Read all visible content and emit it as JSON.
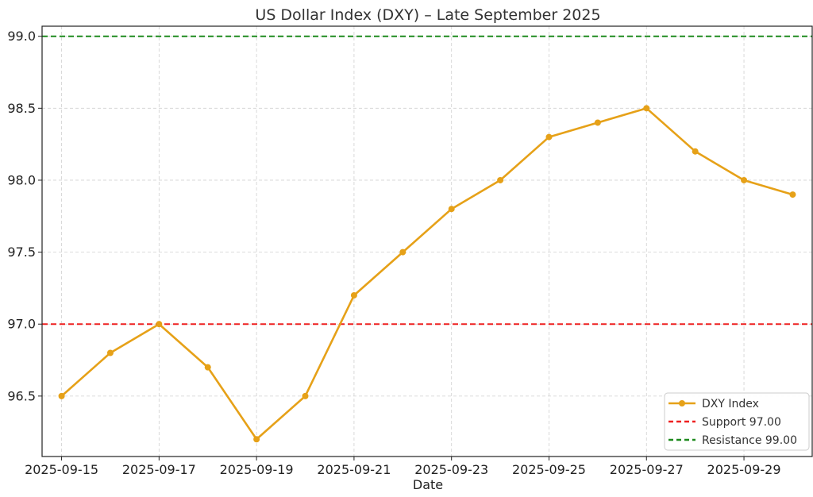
{
  "chart_data": {
    "type": "line",
    "title": "US Dollar Index (DXY) – Late September 2025",
    "xlabel": "Date",
    "ylabel": "",
    "x": [
      "2025-09-15",
      "2025-09-16",
      "2025-09-17",
      "2025-09-18",
      "2025-09-19",
      "2025-09-20",
      "2025-09-21",
      "2025-09-22",
      "2025-09-23",
      "2025-09-24",
      "2025-09-25",
      "2025-09-26",
      "2025-09-27",
      "2025-09-28",
      "2025-09-29",
      "2025-09-30"
    ],
    "xticks": [
      "2025-09-15",
      "2025-09-17",
      "2025-09-19",
      "2025-09-21",
      "2025-09-23",
      "2025-09-25",
      "2025-09-27",
      "2025-09-29"
    ],
    "series": [
      {
        "name": "DXY Index",
        "color": "#E6A118",
        "values": [
          96.5,
          96.8,
          97.0,
          96.7,
          96.2,
          96.5,
          97.2,
          97.5,
          97.8,
          98.0,
          98.3,
          98.4,
          98.5,
          98.2,
          98.0,
          97.9
        ]
      }
    ],
    "hlines": [
      {
        "name": "Support 97.00",
        "value": 97.0,
        "color": "#EE2020",
        "style": "dashed"
      },
      {
        "name": "Resistance 99.00",
        "value": 99.0,
        "color": "#1E8A1E",
        "style": "dashed"
      }
    ],
    "yticks": [
      "96.5",
      "97.0",
      "97.5",
      "98.0",
      "98.5",
      "99.0"
    ],
    "ylim": [
      96.08,
      99.07
    ],
    "xlim": [
      "2025-09-14T14:24",
      "2025-09-30T09:36"
    ],
    "grid": true,
    "legend_position": "bottom-right"
  }
}
